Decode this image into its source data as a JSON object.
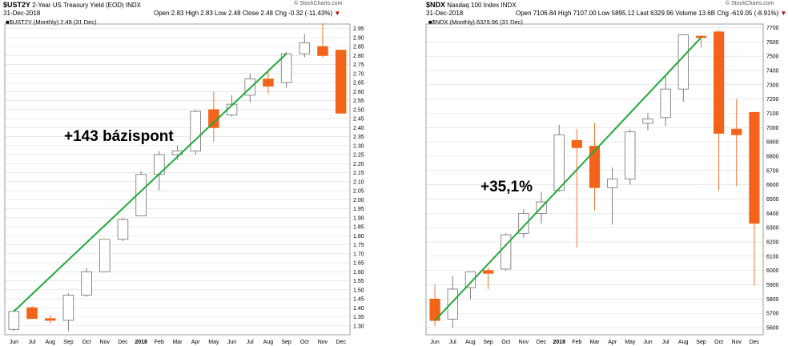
{
  "colors": {
    "up_fill": "#ffffff",
    "up_stroke": "#6e6e6e",
    "down_fill": "#f26419",
    "down_stroke": "#f26419",
    "trend": "#22a83a",
    "grid": "#dddddd",
    "border": "#888888"
  },
  "left": {
    "header": {
      "symbol": "$UST2Y",
      "name": "2-Year US Treasury Yield (EOD)",
      "exchange": "INDX",
      "source": "© StockCharts.com",
      "date": "31-Dec-2018",
      "ohlc_line": "Open 2.83  High 2.83  Low 2.48  Close 2.48  Chg -0.32 (-11.43%)",
      "down_marker": "▼",
      "legend": "■$UST2Y (Monthly) 2.48 (31 Dec)"
    },
    "annotation": "+143 bázispont"
  },
  "right": {
    "header": {
      "symbol": "$NDX",
      "name": "Nasdaq 100 Index",
      "exchange": "INDX",
      "source": "© StockCharts.com",
      "date": "31-Dec-2018",
      "ohlc_line": "Open 7106.84  High 7107.00  Low 5895.12  Last 6329.96  Volume 13.6B  Chg -619.05 (-8.91%)",
      "down_marker": "▼",
      "legend": "■$NDX (Monthly) 6329.96 (31 Dec)"
    },
    "annotation": "+35,1%"
  },
  "chart_data": [
    {
      "type": "candlestick",
      "title": "$UST2Y 2-Year US Treasury Yield (EOD)",
      "categories": [
        "Jun",
        "Jul",
        "Aug",
        "Sep",
        "Oct",
        "Nov",
        "Dec",
        "2018",
        "Feb",
        "Mar",
        "Apr",
        "May",
        "Jun",
        "Jul",
        "Aug",
        "Sep",
        "Oct",
        "Nov",
        "Dec"
      ],
      "ohlc": [
        [
          1.28,
          1.39,
          1.27,
          1.38
        ],
        [
          1.4,
          1.41,
          1.34,
          1.34
        ],
        [
          1.34,
          1.36,
          1.31,
          1.33
        ],
        [
          1.33,
          1.48,
          1.27,
          1.47
        ],
        [
          1.47,
          1.62,
          1.46,
          1.6
        ],
        [
          1.6,
          1.78,
          1.6,
          1.78
        ],
        [
          1.78,
          1.9,
          1.77,
          1.89
        ],
        [
          1.91,
          2.16,
          1.91,
          2.14
        ],
        [
          2.14,
          2.27,
          2.05,
          2.25
        ],
        [
          2.25,
          2.3,
          2.22,
          2.27
        ],
        [
          2.27,
          2.5,
          2.25,
          2.49
        ],
        [
          2.5,
          2.6,
          2.32,
          2.4
        ],
        [
          2.47,
          2.58,
          2.46,
          2.53
        ],
        [
          2.58,
          2.7,
          2.54,
          2.67
        ],
        [
          2.67,
          2.71,
          2.59,
          2.63
        ],
        [
          2.65,
          2.82,
          2.62,
          2.81
        ],
        [
          2.81,
          2.92,
          2.79,
          2.87
        ],
        [
          2.85,
          2.98,
          2.79,
          2.8
        ],
        [
          2.83,
          2.83,
          2.48,
          2.48
        ]
      ],
      "trendline": {
        "from": [
          0,
          1.38
        ],
        "to": [
          15,
          2.81
        ]
      },
      "ylim": [
        1.25,
        2.975
      ],
      "yticks": [
        1.3,
        1.35,
        1.4,
        1.45,
        1.5,
        1.55,
        1.6,
        1.65,
        1.7,
        1.75,
        1.8,
        1.85,
        1.9,
        1.95,
        2.0,
        2.05,
        2.1,
        2.15,
        2.2,
        2.25,
        2.3,
        2.35,
        2.4,
        2.45,
        2.5,
        2.55,
        2.6,
        2.65,
        2.7,
        2.75,
        2.8,
        2.85,
        2.9,
        2.95
      ],
      "ytick_decimals": 2,
      "annotation": "+143 bázispont"
    },
    {
      "type": "candlestick",
      "title": "$NDX Nasdaq 100 Index",
      "categories": [
        "Jun",
        "Jul",
        "Aug",
        "Sep",
        "Oct",
        "Nov",
        "Dec",
        "2018",
        "Feb",
        "Mar",
        "Apr",
        "May",
        "Jun",
        "Jul",
        "Aug",
        "Sep",
        "Oct",
        "Nov",
        "Dec"
      ],
      "ohlc": [
        [
          5800,
          5900,
          5610,
          5650
        ],
        [
          5660,
          5960,
          5600,
          5870
        ],
        [
          5880,
          5980,
          5800,
          5990
        ],
        [
          6000,
          6020,
          5870,
          5980
        ],
        [
          6010,
          6260,
          6000,
          6250
        ],
        [
          6260,
          6430,
          6230,
          6400
        ],
        [
          6400,
          6550,
          6330,
          6480
        ],
        [
          6560,
          7020,
          6550,
          6950
        ],
        [
          6910,
          6990,
          6160,
          6860
        ],
        [
          6870,
          7030,
          6420,
          6580
        ],
        [
          6580,
          6720,
          6320,
          6640
        ],
        [
          6640,
          6990,
          6600,
          6970
        ],
        [
          7030,
          7100,
          6980,
          7060
        ],
        [
          7070,
          7360,
          7010,
          7270
        ],
        [
          7270,
          7650,
          7180,
          7650
        ],
        [
          7640,
          7650,
          7560,
          7630
        ],
        [
          7670,
          7680,
          6560,
          6960
        ],
        [
          6990,
          7200,
          6590,
          6950
        ],
        [
          7106.84,
          7107,
          5895.12,
          6329.96
        ]
      ],
      "trendline": {
        "from": [
          0,
          5650
        ],
        "to": [
          15,
          7630
        ]
      },
      "ylim": [
        5550,
        7725
      ],
      "yticks": [
        5600,
        5700,
        5800,
        5900,
        6000,
        6100,
        6200,
        6300,
        6400,
        6500,
        6600,
        6700,
        6800,
        6900,
        7000,
        7100,
        7200,
        7300,
        7400,
        7500,
        7600,
        7700
      ],
      "ytick_decimals": 0,
      "annotation": "+35,1%"
    }
  ]
}
